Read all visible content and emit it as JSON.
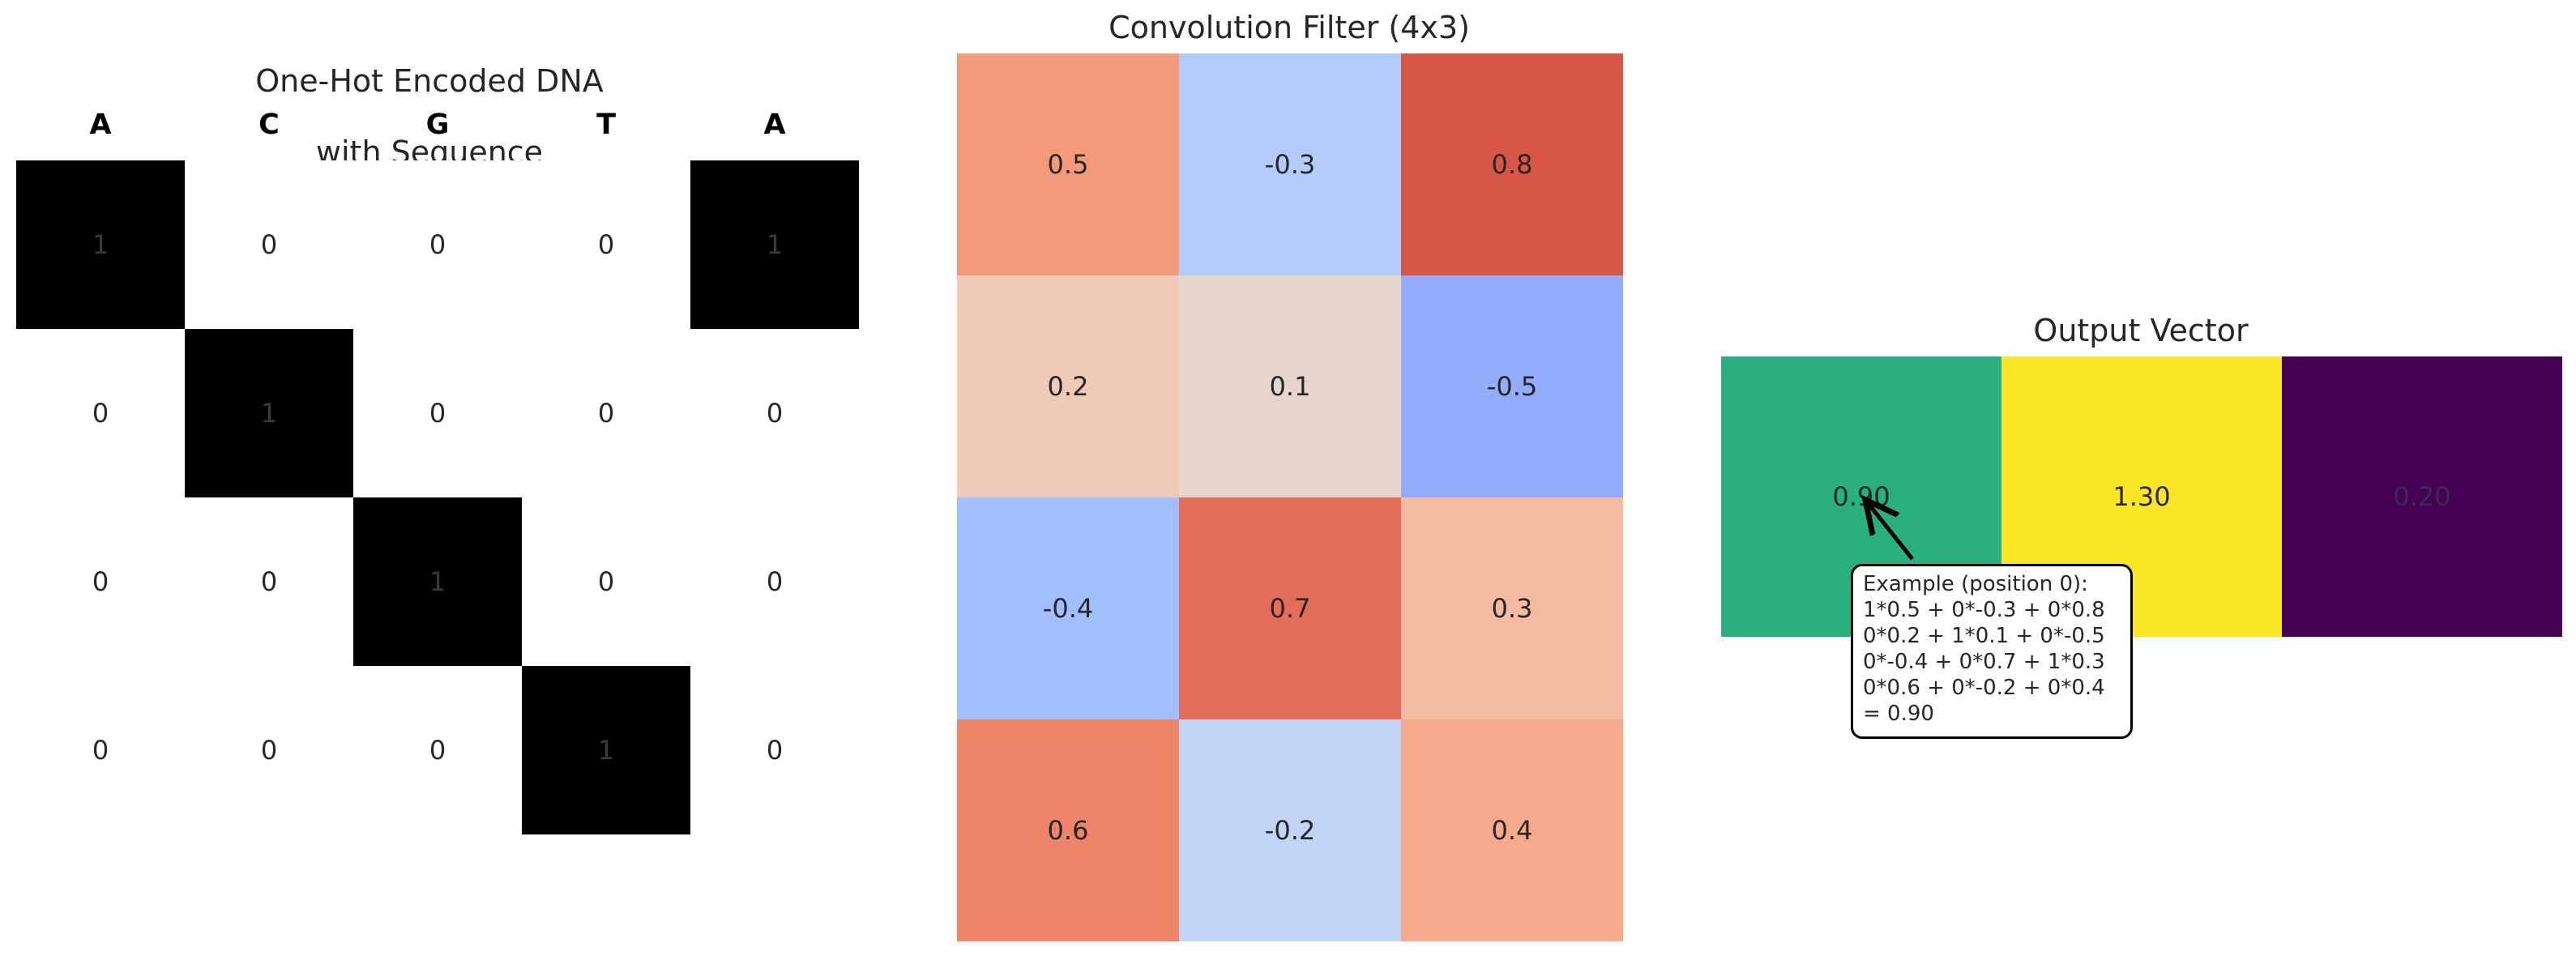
{
  "chart_data": [
    {
      "type": "heatmap",
      "title": "One-Hot Encoded DNA\nwith Sequence",
      "title_lines": [
        "One-Hot Encoded DNA",
        "with Sequence"
      ],
      "sequence": [
        "A",
        "C",
        "G",
        "T",
        "A"
      ],
      "values": [
        [
          1,
          0,
          0,
          0,
          1
        ],
        [
          0,
          1,
          0,
          0,
          0
        ],
        [
          0,
          0,
          1,
          0,
          0
        ],
        [
          0,
          0,
          0,
          1,
          0
        ]
      ],
      "colormap": {
        "0": "#ffffff",
        "1": "#000000"
      },
      "grid": false
    },
    {
      "type": "heatmap",
      "title": "Convolution Filter (4x3)",
      "values": [
        [
          0.5,
          -0.3,
          0.8
        ],
        [
          0.2,
          0.1,
          -0.5
        ],
        [
          -0.4,
          0.7,
          0.3
        ],
        [
          0.6,
          -0.2,
          0.4
        ]
      ],
      "colors": [
        [
          "#f39a7a",
          "#b2cbfb",
          "#d85646"
        ],
        [
          "#efcab6",
          "#e6d5ca",
          "#91adfb"
        ],
        [
          "#a1bffe",
          "#e46d58",
          "#f5bba0"
        ],
        [
          "#ee8569",
          "#c2d4f4",
          "#f6aa8c"
        ]
      ],
      "colormap": "coolwarm",
      "grid": false
    },
    {
      "type": "heatmap",
      "title": "Output Vector",
      "values": [
        0.9,
        1.3,
        0.2
      ],
      "labels": [
        "0.90",
        "1.30",
        "0.20"
      ],
      "colors": [
        "#2ab07f",
        "#fbe625",
        "#440154"
      ],
      "colormap": "viridis",
      "grid": false,
      "annotation": {
        "lines": [
          "Example (position 0):",
          "1*0.5 + 0*-0.3 + 0*0.8",
          "0*0.2 + 1*0.1 + 0*-0.5",
          "0*-0.4 + 0*0.7 + 1*0.3",
          "0*0.6 + 0*-0.2 + 0*0.4",
          "= 0.90"
        ],
        "points_to_index": 0
      }
    }
  ]
}
